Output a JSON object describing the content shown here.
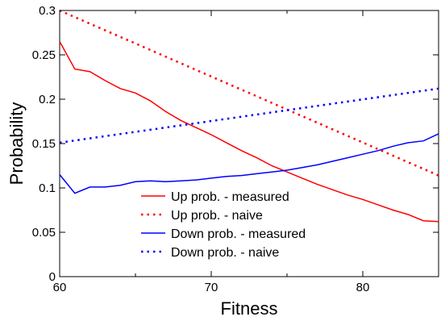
{
  "chart_data": {
    "type": "line",
    "title": "",
    "xlabel": "Fitness",
    "ylabel": "Probability",
    "xlim": [
      60,
      85
    ],
    "ylim": [
      0,
      0.3
    ],
    "x_ticks": [
      60,
      70,
      80
    ],
    "x_tick_labels": [
      "60",
      "70",
      "80"
    ],
    "y_ticks": [
      0,
      0.05,
      0.1,
      0.15,
      0.2,
      0.25,
      0.3
    ],
    "y_tick_labels": [
      "0",
      "0.05",
      "0.1",
      "0.15",
      "0.2",
      "0.25",
      "0.3"
    ],
    "grid": false,
    "legend_position": "bottom-center",
    "series": [
      {
        "name": "Up prob. - measured",
        "color": "#ff0000",
        "style": "solid",
        "x": [
          60,
          61,
          62,
          63,
          64,
          65,
          66,
          67,
          68,
          69,
          70,
          71,
          72,
          73,
          74,
          75,
          76,
          77,
          78,
          79,
          80,
          81,
          82,
          83,
          84,
          85
        ],
        "y": [
          0.265,
          0.234,
          0.231,
          0.221,
          0.212,
          0.207,
          0.198,
          0.186,
          0.176,
          0.168,
          0.16,
          0.151,
          0.142,
          0.134,
          0.125,
          0.118,
          0.111,
          0.104,
          0.098,
          0.092,
          0.087,
          0.081,
          0.075,
          0.07,
          0.063,
          0.062
        ]
      },
      {
        "name": "Up prob. - naive",
        "color": "#ff0000",
        "style": "dotted",
        "x": [
          60,
          85
        ],
        "y": [
          0.3,
          0.114
        ]
      },
      {
        "name": "Down prob. - measured",
        "color": "#0000ff",
        "style": "solid",
        "x": [
          60,
          61,
          62,
          63,
          64,
          65,
          66,
          67,
          68,
          69,
          70,
          71,
          72,
          73,
          74,
          75,
          76,
          77,
          78,
          79,
          80,
          81,
          82,
          83,
          84,
          85
        ],
        "y": [
          0.115,
          0.094,
          0.101,
          0.101,
          0.103,
          0.107,
          0.108,
          0.107,
          0.108,
          0.109,
          0.111,
          0.113,
          0.114,
          0.116,
          0.118,
          0.12,
          0.123,
          0.126,
          0.13,
          0.134,
          0.138,
          0.142,
          0.147,
          0.151,
          0.153,
          0.161
        ]
      },
      {
        "name": "Down prob. - naive",
        "color": "#0000ff",
        "style": "dotted",
        "x": [
          60,
          85
        ],
        "y": [
          0.151,
          0.212
        ]
      }
    ]
  }
}
